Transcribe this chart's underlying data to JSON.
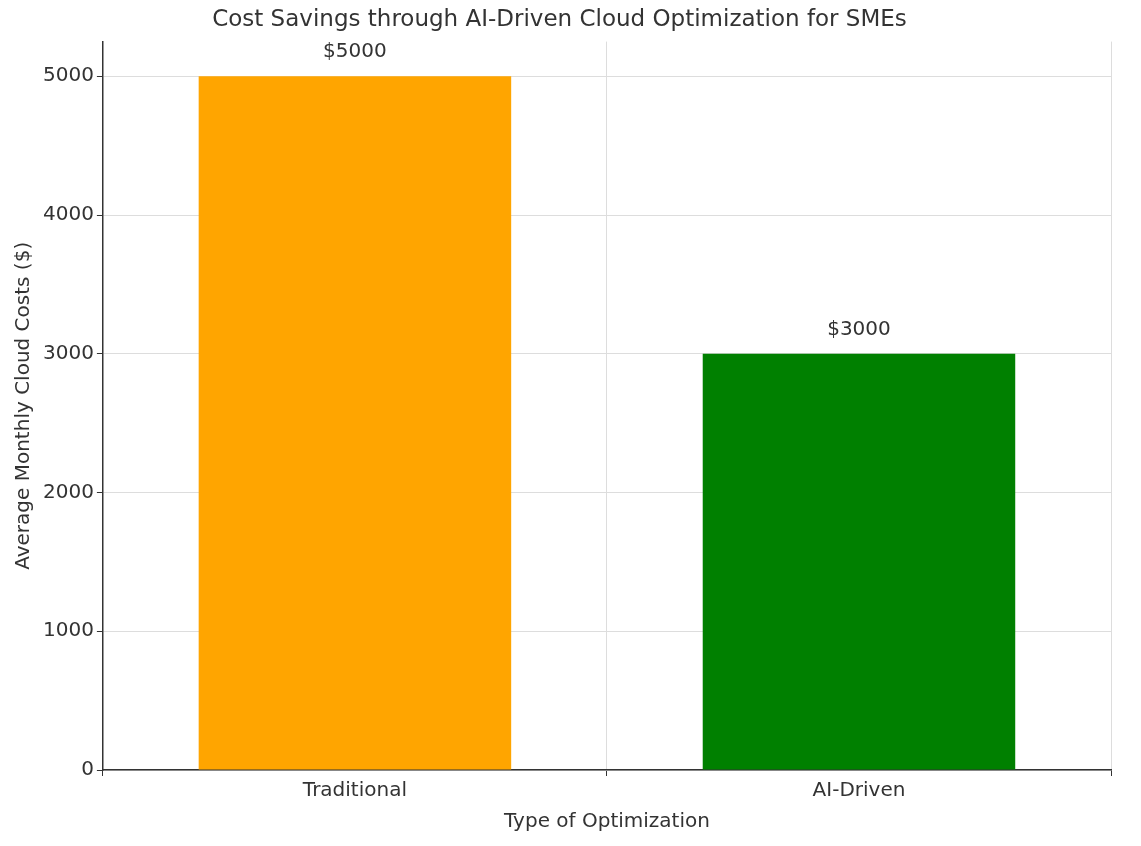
{
  "chart_data": {
    "type": "bar",
    "title": "Cost Savings through AI-Driven Cloud Optimization for SMEs",
    "xlabel": "Type of Optimization",
    "ylabel": "Average Monthly Cloud Costs ($)",
    "categories": [
      "Traditional",
      "AI-Driven"
    ],
    "values": [
      5000,
      3000
    ],
    "colors": [
      "#ffa500",
      "#008000"
    ],
    "value_labels": [
      "$5000",
      "$3000"
    ],
    "ylim": [
      0,
      5250
    ],
    "yticks": [
      0,
      1000,
      2000,
      3000,
      4000,
      5000
    ],
    "grid": true
  }
}
